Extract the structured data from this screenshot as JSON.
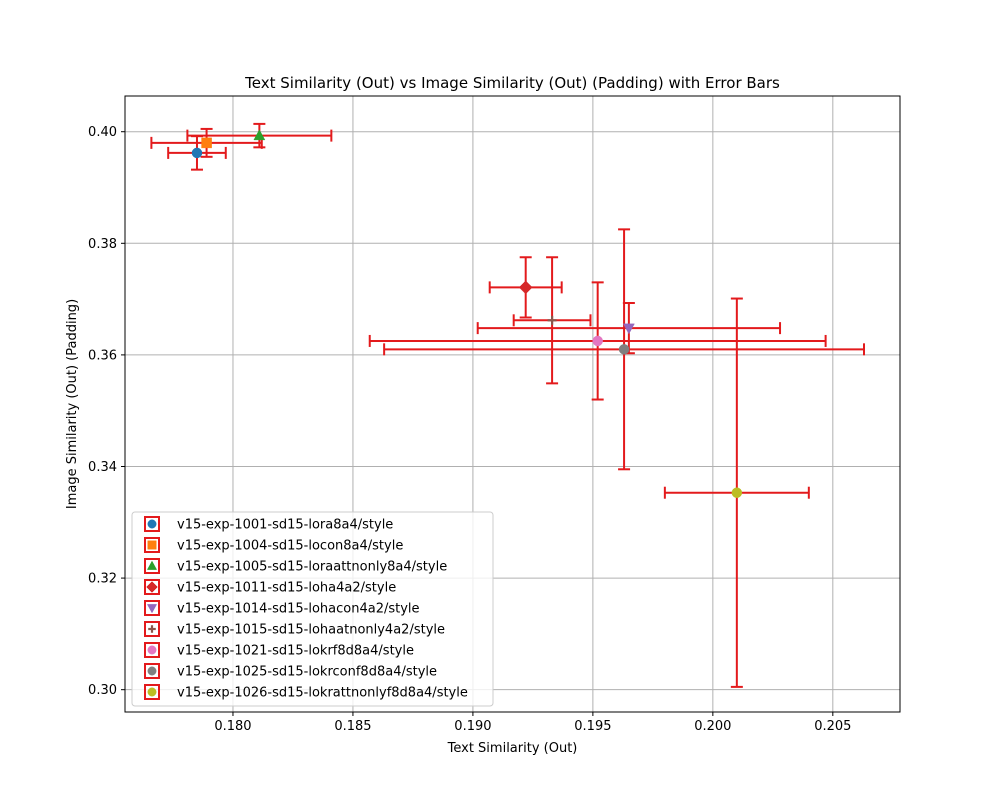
{
  "chart_data": {
    "type": "scatter",
    "title": "Text Similarity (Out) vs Image Similarity (Out) (Padding) with Error Bars",
    "xlabel": "Text Similarity (Out)",
    "ylabel": "Image Similarity (Out) (Padding)",
    "xlim": [
      0.1755,
      0.2078
    ],
    "ylim": [
      0.296,
      0.4064
    ],
    "xticks": [
      "0.180",
      "0.185",
      "0.190",
      "0.195",
      "0.200",
      "0.205"
    ],
    "xtick_values": [
      0.18,
      0.185,
      0.19,
      0.195,
      0.2,
      0.205
    ],
    "yticks": [
      "0.30",
      "0.32",
      "0.34",
      "0.36",
      "0.38",
      "0.40"
    ],
    "ytick_values": [
      0.3,
      0.32,
      0.34,
      0.36,
      0.38,
      0.4
    ],
    "grid": true,
    "legend_position": "lower-left",
    "errorbar_color": "#e31a1c",
    "series": [
      {
        "name": "v15-exp-1001-sd15-lora8a4/style",
        "marker": "circle",
        "color": "#1f77b4",
        "x": 0.1785,
        "y": 0.3962,
        "xerr": 0.0012,
        "yerr": 0.003
      },
      {
        "name": "v15-exp-1004-sd15-locon8a4/style",
        "marker": "square",
        "color": "#ff7f0e",
        "x": 0.1789,
        "y": 0.398,
        "xerr": 0.0023,
        "yerr": 0.0025
      },
      {
        "name": "v15-exp-1005-sd15-loraattnonly8a4/style",
        "marker": "triangle-up",
        "color": "#2ca02c",
        "x": 0.1811,
        "y": 0.3993,
        "xerr": 0.003,
        "yerr": 0.0021
      },
      {
        "name": "v15-exp-1011-sd15-loha4a2/style",
        "marker": "diamond",
        "color": "#d62728",
        "x": 0.1922,
        "y": 0.3721,
        "xerr": 0.0015,
        "yerr": 0.0054
      },
      {
        "name": "v15-exp-1014-sd15-lohacon4a2/style",
        "marker": "triangle-down",
        "color": "#9467bd",
        "x": 0.1965,
        "y": 0.3648,
        "xerr": 0.0063,
        "yerr": 0.0045
      },
      {
        "name": "v15-exp-1015-sd15-lohaatnonly4a2/style",
        "marker": "plus",
        "color": "#8c564b",
        "x": 0.1933,
        "y": 0.3662,
        "xerr": 0.0016,
        "yerr": 0.0113
      },
      {
        "name": "v15-exp-1021-sd15-lokrf8d8a4/style",
        "marker": "circle",
        "color": "#e377c2",
        "x": 0.1952,
        "y": 0.3625,
        "xerr": 0.0095,
        "yerr": 0.0105
      },
      {
        "name": "v15-exp-1025-sd15-lokrconf8d8a4/style",
        "marker": "circle",
        "color": "#7f7f7f",
        "x": 0.1963,
        "y": 0.361,
        "xerr": 0.01,
        "yerr": 0.0215
      },
      {
        "name": "v15-exp-1026-sd15-lokrattnonlyf8d8a4/style",
        "marker": "circle",
        "color": "#bcbd22",
        "x": 0.201,
        "y": 0.3353,
        "xerr": 0.003,
        "yerr": 0.0348
      }
    ]
  }
}
